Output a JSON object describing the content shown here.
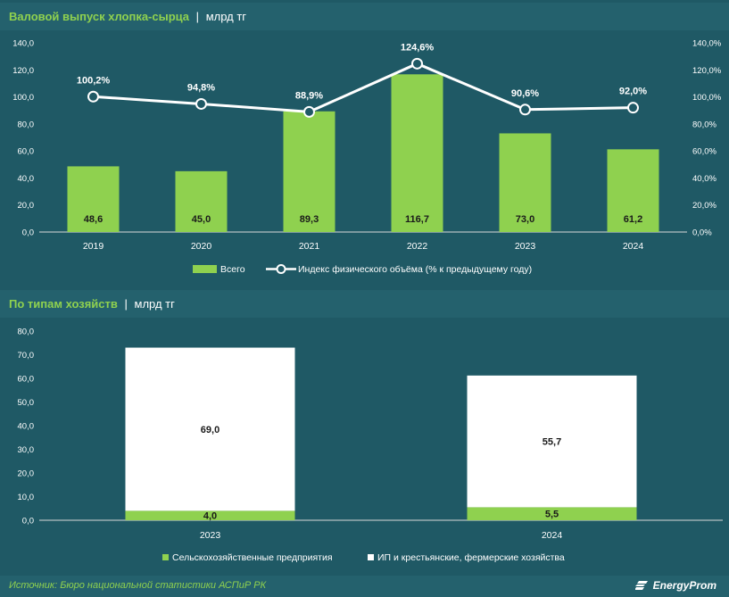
{
  "chart1": {
    "title": "Валовой выпуск хлопка-сырца",
    "separator": "|",
    "unit": "млрд тг"
  },
  "chart2": {
    "title": "По типам хозяйств",
    "separator": "|",
    "unit": "млрд тг"
  },
  "footer": {
    "source": "Источник: Бюро национальной статистики АСПиР РК",
    "logo": "EnergyProm"
  },
  "colors": {
    "background": "#1f5965",
    "header_bar": "#24616d",
    "bar_green": "#8fd14f",
    "white": "#ffffff",
    "accent_text": "#8fd14f"
  },
  "chart_data": [
    {
      "type": "bar",
      "categories": [
        "2019",
        "2020",
        "2021",
        "2022",
        "2023",
        "2024"
      ],
      "series": [
        {
          "name": "Всего",
          "axis": "left",
          "values": [
            48.6,
            45.0,
            89.3,
            116.7,
            73.0,
            61.2
          ],
          "labels": [
            "48,6",
            "45,0",
            "89,3",
            "116,7",
            "73,0",
            "61,2"
          ]
        },
        {
          "name": "Индекс физического объёма (% к предыдущему году)",
          "type": "line",
          "axis": "right",
          "values": [
            100.2,
            94.8,
            88.9,
            124.6,
            90.6,
            92.0
          ],
          "labels": [
            "100,2%",
            "94,8%",
            "88,9%",
            "124,6%",
            "90,6%",
            "92,0%"
          ]
        }
      ],
      "ylim": [
        0,
        140
      ],
      "yticks": [
        "0,0",
        "20,0",
        "40,0",
        "60,0",
        "80,0",
        "100,0",
        "120,0",
        "140,0"
      ],
      "y2lim": [
        0,
        140
      ],
      "y2ticks": [
        "0,0%",
        "20,0%",
        "40,0%",
        "60,0%",
        "80,0%",
        "100,0%",
        "120,0%",
        "140,0%"
      ],
      "grid": false,
      "legend": "bottom-center"
    },
    {
      "type": "bar",
      "stacked": true,
      "categories": [
        "2023",
        "2024"
      ],
      "series": [
        {
          "name": "Сельскохозяйственные предприятия",
          "values": [
            4.0,
            5.5
          ],
          "labels": [
            "4,0",
            "5,5"
          ]
        },
        {
          "name": "ИП и крестьянские, фермерские хозяйства",
          "values": [
            69.0,
            55.7
          ],
          "labels": [
            "69,0",
            "55,7"
          ]
        }
      ],
      "ylim": [
        0,
        80
      ],
      "yticks": [
        "0,0",
        "10,0",
        "20,0",
        "30,0",
        "40,0",
        "50,0",
        "60,0",
        "70,0",
        "80,0"
      ],
      "grid": false,
      "legend": "bottom-center"
    }
  ]
}
